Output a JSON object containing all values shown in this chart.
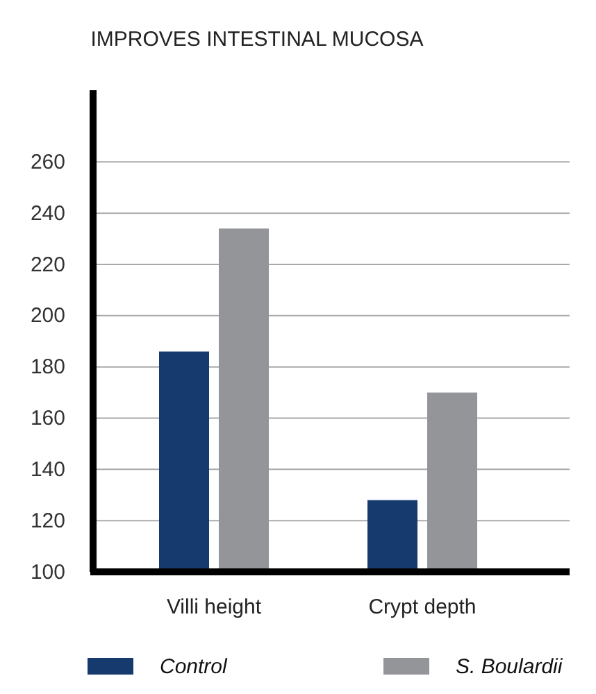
{
  "chart_data": {
    "type": "bar",
    "title": "IMPROVES INTESTINAL MUCOSA",
    "categories": [
      "Villi height",
      "Crypt depth"
    ],
    "series": [
      {
        "name": "Control",
        "color": "#173a6e",
        "values": [
          186,
          128
        ]
      },
      {
        "name": "S. Boulardii",
        "color": "#939598",
        "values": [
          234,
          170
        ]
      }
    ],
    "ylim": [
      100,
      288
    ],
    "yticks": [
      100,
      120,
      140,
      160,
      180,
      200,
      220,
      240,
      260
    ],
    "grid": "y",
    "legend": "bottom"
  }
}
